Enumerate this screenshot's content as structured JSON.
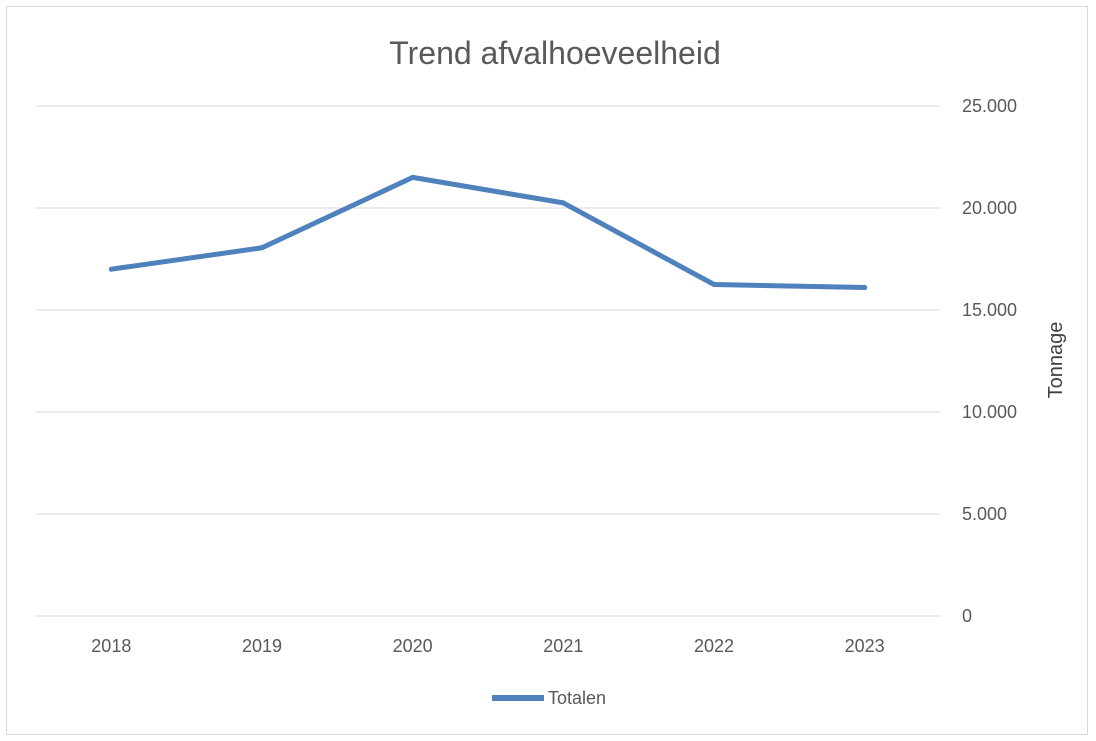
{
  "chart_data": {
    "type": "line",
    "title": "Trend afvalhoeveelheid",
    "xlabel": "",
    "ylabel": "Tonnage",
    "categories": [
      "2018",
      "2019",
      "2020",
      "2021",
      "2022",
      "2023"
    ],
    "series": [
      {
        "name": "Totalen",
        "values": [
          17000,
          18050,
          21500,
          20250,
          16250,
          16100
        ],
        "color": "#4f81bd"
      }
    ],
    "ylim": [
      0,
      25000
    ],
    "yticks": [
      0,
      5000,
      10000,
      15000,
      20000,
      25000
    ],
    "ytick_labels": [
      "0",
      "5.000",
      "10.000",
      "15.000",
      "20.000",
      "25.000"
    ],
    "y_axis_side": "right",
    "grid": true,
    "legend_position": "bottom"
  }
}
